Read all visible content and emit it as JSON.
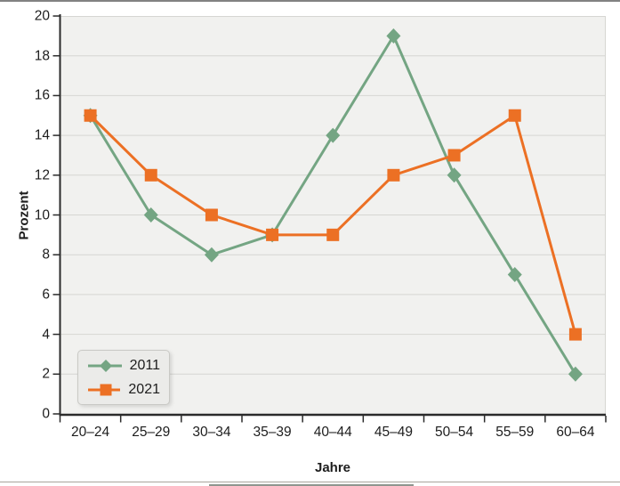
{
  "chart_data": {
    "type": "line",
    "categories": [
      "20–24",
      "25–29",
      "30–34",
      "35–39",
      "40–44",
      "45–49",
      "50–54",
      "55–59",
      "60–64"
    ],
    "series": [
      {
        "name": "2011",
        "marker": "diamond",
        "color": "#74a583",
        "values": [
          15,
          10,
          8,
          9,
          14,
          19,
          12,
          7,
          2
        ]
      },
      {
        "name": "2021",
        "marker": "square",
        "color": "#ec7024",
        "values": [
          15,
          12,
          10,
          9,
          9,
          12,
          13,
          15,
          4
        ]
      }
    ],
    "title": "",
    "xlabel": "Jahre",
    "ylabel": "Prozent",
    "ylim": [
      0,
      20
    ],
    "ytick_step": 2,
    "grid": true,
    "legend_position": "lower-left"
  },
  "colors": {
    "plot_bg": "#f1f1ef",
    "grid": "#d6d6d2",
    "axis": "#2b2b2b",
    "text": "#1d1d1d",
    "top_rule": "#828282",
    "bottom_rule": "#a9a49c",
    "bottom_strip": "#8f968f",
    "legend_bg": "#ebebe9",
    "legend_border": "#c9c9c5"
  }
}
